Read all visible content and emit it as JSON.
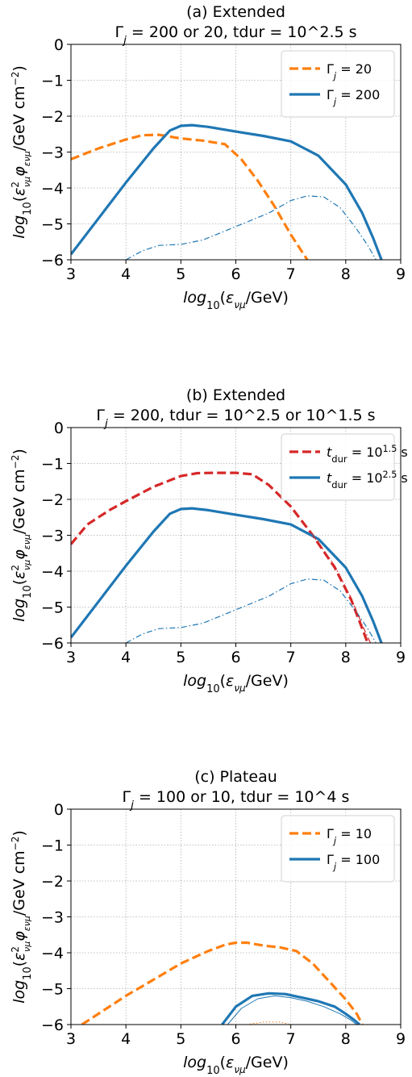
{
  "chart_data": [
    {
      "type": "line",
      "title": "(a) Extended",
      "subtitle": "Γj = 200 or 20, tdur = 10^2.5 s",
      "xlabel": "log10(ε_νμ/GeV)",
      "ylabel": "log10(ε²_νμ φ_ε_νμ /GeV cm⁻²)",
      "xlim": [
        3,
        9
      ],
      "ylim": [
        -6,
        0
      ],
      "x_ticks": [
        "3",
        "4",
        "5",
        "6",
        "7",
        "8",
        "9"
      ],
      "y_ticks": [
        "0",
        "−1",
        "−2",
        "−3",
        "−4",
        "−5",
        "−6"
      ],
      "grid": true,
      "legend_position": "top-right",
      "series": [
        {
          "name": "Γj = 20",
          "color": "#ff7f0e",
          "style": "dashed",
          "width": 3.2,
          "x": [
            3.0,
            3.5,
            4.0,
            4.3,
            4.6,
            5.0,
            5.4,
            5.8,
            6.1,
            6.4,
            6.7,
            7.0,
            7.3
          ],
          "y": [
            -3.2,
            -2.9,
            -2.65,
            -2.53,
            -2.52,
            -2.62,
            -2.68,
            -2.78,
            -3.2,
            -3.8,
            -4.5,
            -5.3,
            -6.0
          ]
        },
        {
          "name": "Γj = 200",
          "color": "#1f77b4",
          "style": "solid",
          "width": 3.2,
          "x": [
            3.0,
            3.5,
            4.0,
            4.5,
            4.8,
            5.0,
            5.2,
            5.5,
            6.0,
            6.5,
            7.0,
            7.5,
            8.0,
            8.3,
            8.5,
            8.65
          ],
          "y": [
            -5.85,
            -4.85,
            -3.85,
            -2.9,
            -2.4,
            -2.27,
            -2.25,
            -2.3,
            -2.43,
            -2.55,
            -2.7,
            -3.1,
            -3.9,
            -4.7,
            -5.4,
            -6.0
          ]
        },
        {
          "color": "#1f77b4",
          "style": "dashdot",
          "width": 1.2,
          "x": [
            4.0,
            4.3,
            4.6,
            5.0,
            5.4,
            5.8,
            6.2,
            6.6,
            7.0,
            7.3,
            7.6,
            7.9,
            8.2,
            8.4,
            8.55
          ],
          "y": [
            -6.0,
            -5.75,
            -5.6,
            -5.57,
            -5.45,
            -5.2,
            -4.95,
            -4.7,
            -4.35,
            -4.22,
            -4.25,
            -4.55,
            -5.15,
            -5.6,
            -6.0
          ]
        }
      ]
    },
    {
      "type": "line",
      "title": "(b) Extended",
      "subtitle": "Γj = 200, tdur = 10^2.5 or 10^1.5 s",
      "xlabel": "log10(ε_νμ/GeV)",
      "ylabel": "log10(ε²_νμ φ_ε_νμ /GeV cm⁻²)",
      "xlim": [
        3,
        9
      ],
      "ylim": [
        -6,
        0
      ],
      "x_ticks": [
        "3",
        "4",
        "5",
        "6",
        "7",
        "8",
        "9"
      ],
      "y_ticks": [
        "0",
        "−1",
        "−2",
        "−3",
        "−4",
        "−5",
        "−6"
      ],
      "grid": true,
      "legend_position": "top-right",
      "series": [
        {
          "name": "tdur = 10^1.5 s",
          "color": "#d62728",
          "style": "dashed",
          "width": 3.2,
          "x": [
            3.0,
            3.3,
            3.7,
            4.0,
            4.5,
            5.0,
            5.3,
            5.6,
            6.0,
            6.3,
            6.6,
            7.0,
            7.4,
            7.8,
            8.1,
            8.3,
            8.4
          ],
          "y": [
            -3.25,
            -2.7,
            -2.3,
            -2.05,
            -1.65,
            -1.35,
            -1.27,
            -1.26,
            -1.26,
            -1.3,
            -1.6,
            -2.2,
            -3.0,
            -3.9,
            -4.8,
            -5.6,
            -6.0
          ]
        },
        {
          "name": "tdur = 10^2.5 s",
          "color": "#1f77b4",
          "style": "solid",
          "width": 3.2,
          "x": [
            3.0,
            3.5,
            4.0,
            4.5,
            4.8,
            5.0,
            5.2,
            5.5,
            6.0,
            6.5,
            7.0,
            7.5,
            8.0,
            8.3,
            8.5,
            8.65
          ],
          "y": [
            -5.85,
            -4.85,
            -3.85,
            -2.9,
            -2.4,
            -2.27,
            -2.25,
            -2.3,
            -2.43,
            -2.55,
            -2.7,
            -3.1,
            -3.9,
            -4.7,
            -5.4,
            -6.0
          ]
        },
        {
          "color": "#1f77b4",
          "style": "dashdot",
          "width": 1.2,
          "x": [
            4.0,
            4.3,
            4.6,
            5.0,
            5.4,
            5.8,
            6.2,
            6.6,
            7.0,
            7.3,
            7.6,
            7.9,
            8.2,
            8.4,
            8.55
          ],
          "y": [
            -6.0,
            -5.75,
            -5.6,
            -5.57,
            -5.45,
            -5.2,
            -4.95,
            -4.7,
            -4.35,
            -4.22,
            -4.25,
            -4.55,
            -5.15,
            -5.6,
            -6.0
          ]
        },
        {
          "color": "#d62728",
          "style": "dashdot",
          "width": 1.2,
          "x": [
            7.4,
            7.8,
            8.1,
            8.3,
            8.45
          ],
          "y": [
            -3.0,
            -3.85,
            -4.75,
            -5.5,
            -6.0
          ]
        }
      ]
    },
    {
      "type": "line",
      "title": "(c) Plateau",
      "subtitle": "Γj = 100 or 10, tdur = 10^4 s",
      "xlabel": "log10(ε_νμ/GeV)",
      "ylabel": "log10(ε²_νμ φ_ε_νμ /GeV cm⁻²)",
      "xlim": [
        3,
        9
      ],
      "ylim": [
        -6,
        0
      ],
      "x_ticks": [
        "3",
        "4",
        "5",
        "6",
        "7",
        "8",
        "9"
      ],
      "y_ticks": [
        "0",
        "−1",
        "−2",
        "−3",
        "−4",
        "−5",
        "−6"
      ],
      "grid": true,
      "legend_position": "top-right",
      "series": [
        {
          "name": "Γj = 10",
          "color": "#ff7f0e",
          "style": "dashed",
          "width": 3.2,
          "x": [
            3.2,
            3.6,
            4.0,
            4.5,
            5.0,
            5.5,
            5.8,
            6.0,
            6.2,
            6.5,
            6.8,
            7.1,
            7.4,
            7.7,
            8.0,
            8.2,
            8.3
          ],
          "y": [
            -6.0,
            -5.6,
            -5.2,
            -4.75,
            -4.3,
            -3.95,
            -3.78,
            -3.72,
            -3.72,
            -3.8,
            -3.85,
            -3.95,
            -4.3,
            -4.8,
            -5.3,
            -5.7,
            -6.0
          ]
        },
        {
          "name": "Γj = 100",
          "color": "#1f77b4",
          "style": "solid",
          "width": 3.2,
          "x": [
            5.75,
            6.0,
            6.3,
            6.6,
            6.9,
            7.2,
            7.5,
            7.8,
            8.0,
            8.15,
            8.25
          ],
          "y": [
            -6.0,
            -5.5,
            -5.2,
            -5.13,
            -5.15,
            -5.25,
            -5.35,
            -5.5,
            -5.7,
            -5.87,
            -6.0
          ]
        },
        {
          "color": "#1f77b4",
          "style": "solid",
          "width": 1.0,
          "x": [
            5.85,
            6.1,
            6.4,
            6.7,
            7.0,
            7.3,
            7.6,
            7.9,
            8.1,
            8.2
          ],
          "y": [
            -6.0,
            -5.55,
            -5.28,
            -5.2,
            -5.25,
            -5.35,
            -5.5,
            -5.7,
            -5.88,
            -6.0
          ]
        },
        {
          "color": "#ff7f0e",
          "style": "dotted",
          "width": 1.0,
          "x": [
            6.2,
            6.5,
            6.8,
            7.0
          ],
          "y": [
            -6.0,
            -5.93,
            -5.93,
            -6.0
          ]
        }
      ]
    }
  ]
}
